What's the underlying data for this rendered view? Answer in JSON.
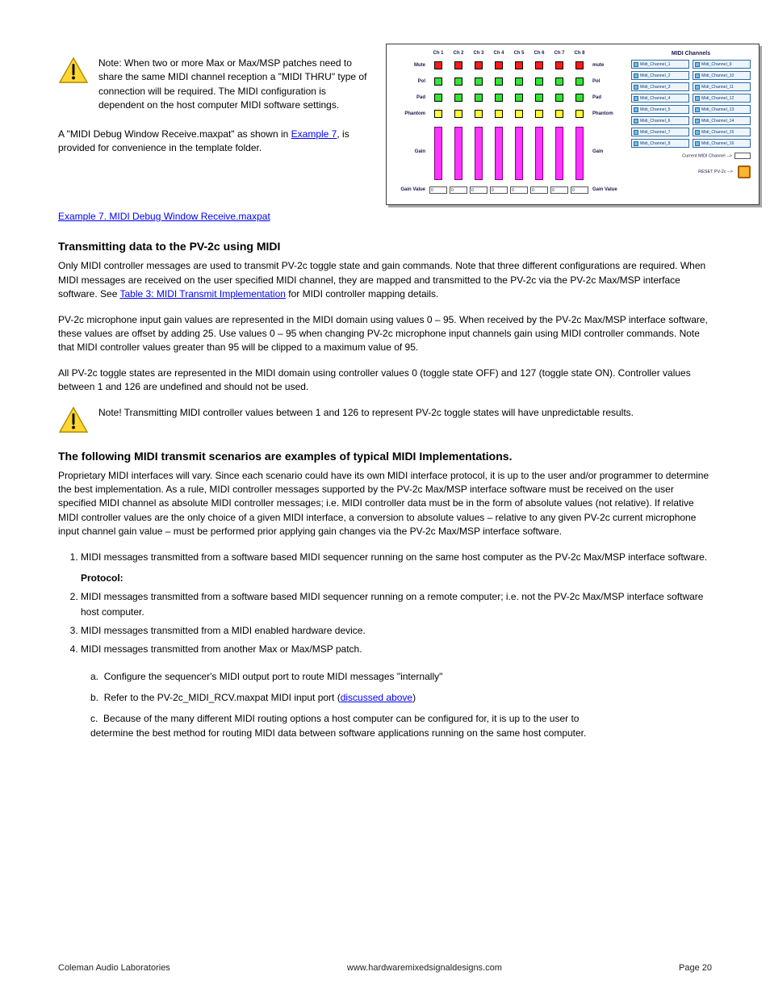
{
  "top": {
    "intro_prefix": "A \"MIDI Debug Window Receive.maxpat\" as shown in ",
    "intro_link": "Example 7",
    "intro_suffix": ", is provided for convenience in the template folder.",
    "note": "Note: When two or more Max or Max/MSP patches need to share the same MIDI channel reception a \"MIDI THRU\" type of connection will be required. The MIDI configuration is dependent on the host computer MIDI software settings."
  },
  "example7": {
    "label": "Example 7. MIDI Debug Window Receive.maxpat"
  },
  "figure": {
    "channel_headers": [
      "Ch 1",
      "Ch 2",
      "Ch 3",
      "Ch 4",
      "Ch 5",
      "Ch 6",
      "Ch 7",
      "Ch 8"
    ],
    "rows": [
      {
        "label": "Mute",
        "right": "mute",
        "color": "red"
      },
      {
        "label": "Pol",
        "right": "Pol",
        "color": "green"
      },
      {
        "label": "Pad",
        "right": "Pad",
        "color": "green"
      },
      {
        "label": "Phantom",
        "right": "Phantom",
        "color": "yellow"
      }
    ],
    "gain_row": {
      "label": "Gain",
      "right": "Gain"
    },
    "gainval_row": {
      "label": "Gain Value",
      "right": "Gain Value"
    },
    "gain_values": [
      "0",
      "0",
      "0",
      "0",
      "0",
      "0",
      "0",
      "0"
    ],
    "slider_color": "#ff33ff",
    "midi_title": "MIDI Channels",
    "midi_channels": [
      "Midi_Channel_1",
      "Midi_Channel_9",
      "Midi_Channel_2",
      "Midi_Channel_10",
      "Midi_Channel_3",
      "Midi_Channel_11",
      "Midi_Channel_4",
      "Midi_Channel_12",
      "Midi_Channel_5",
      "Midi_Channel_13",
      "Midi_Channel_6",
      "Midi_Channel_14",
      "Midi_Channel_7",
      "Midi_Channel_15",
      "Midi_Channel_8",
      "Midi_Channel_16"
    ],
    "current_midi_label": "Current MIDI Channel -->",
    "reset_label": "RESET PV-2c -->"
  },
  "section_tx": {
    "title": "Transmitting data to the PV-2c using MIDI",
    "para1_a": "Only MIDI controller messages are used to transmit PV-2c toggle state and gain commands. Note that three different configurations are required. When MIDI messages are received on the user specified MIDI channel, they are mapped and transmitted to the PV-2c via the PV-2c Max/MSP interface software. See ",
    "para1_link": "Table 3: MIDI Transmit Implementation",
    "para1_b": " for MIDI controller mapping details.",
    "para2": "PV-2c microphone input gain values are represented in the MIDI domain using values 0 – 95. When received by the PV-2c Max/MSP interface software, these values are offset by adding 25. Use values 0 – 95 when changing PV-2c microphone input channels gain using MIDI controller commands. Note that MIDI controller values greater than 95 will be clipped to a maximum value of 95.",
    "para3": "All PV-2c toggle states are represented in the MIDI domain using controller values 0 (toggle state OFF) and 127 (toggle state ON). Controller values between 1 and 126 are undefined and should not be used.",
    "note": "Note! Transmitting MIDI controller values between 1 and 126 to represent PV-2c toggle states will have unpredictable results."
  },
  "scenarios": {
    "title": "The following MIDI transmit scenarios are examples of typical MIDI Implementations.",
    "intro": "Proprietary MIDI interfaces will vary. Since each scenario could have its own MIDI interface protocol, it is up to the user and/or programmer to determine the best implementation. As a rule, MIDI controller messages supported by the PV-2c Max/MSP interface software must be received on the user specified MIDI channel as absolute MIDI controller messages; i.e. MIDI controller data must be in the form of absolute values (not relative). If relative MIDI controller values are the only choice of a given MIDI interface, a conversion to absolute values – relative to any given PV-2c current microphone input channel gain value – must be performed prior applying gain changes via the PV-2c Max/MSP interface software.",
    "items": [
      "MIDI messages transmitted from a software based MIDI sequencer running on the same host computer as the PV-2c Max/MSP interface software.",
      "MIDI messages transmitted from a software based MIDI sequencer running on a remote computer; i.e. not the PV-2c Max/MSP interface software host computer.",
      "MIDI messages transmitted from a MIDI enabled hardware device.",
      "MIDI messages transmitted from another Max or Max/MSP patch."
    ],
    "protocol_a": "Configure the sequencer's MIDI output port to route MIDI messages \"internally\"",
    "protocol_b_prefix": "Refer to the PV-2c_MIDI_RCV.maxpat MIDI input port (",
    "protocol_b_link": "discussed above",
    "protocol_b_suffix": ")",
    "protocol_c": "Because of the many different MIDI routing options a host computer can be configured for, it is up to the user to determine the best method for routing MIDI data between software applications running on the same host computer."
  },
  "footer": {
    "left": "Coleman Audio Laboratories",
    "center": "www.hardwaremixedsignaldesigns.com",
    "right": "Page 20"
  },
  "colors": {
    "link": "#0000ff",
    "warn_fill": "#ffd633",
    "warn_stroke": "#b08a00"
  }
}
